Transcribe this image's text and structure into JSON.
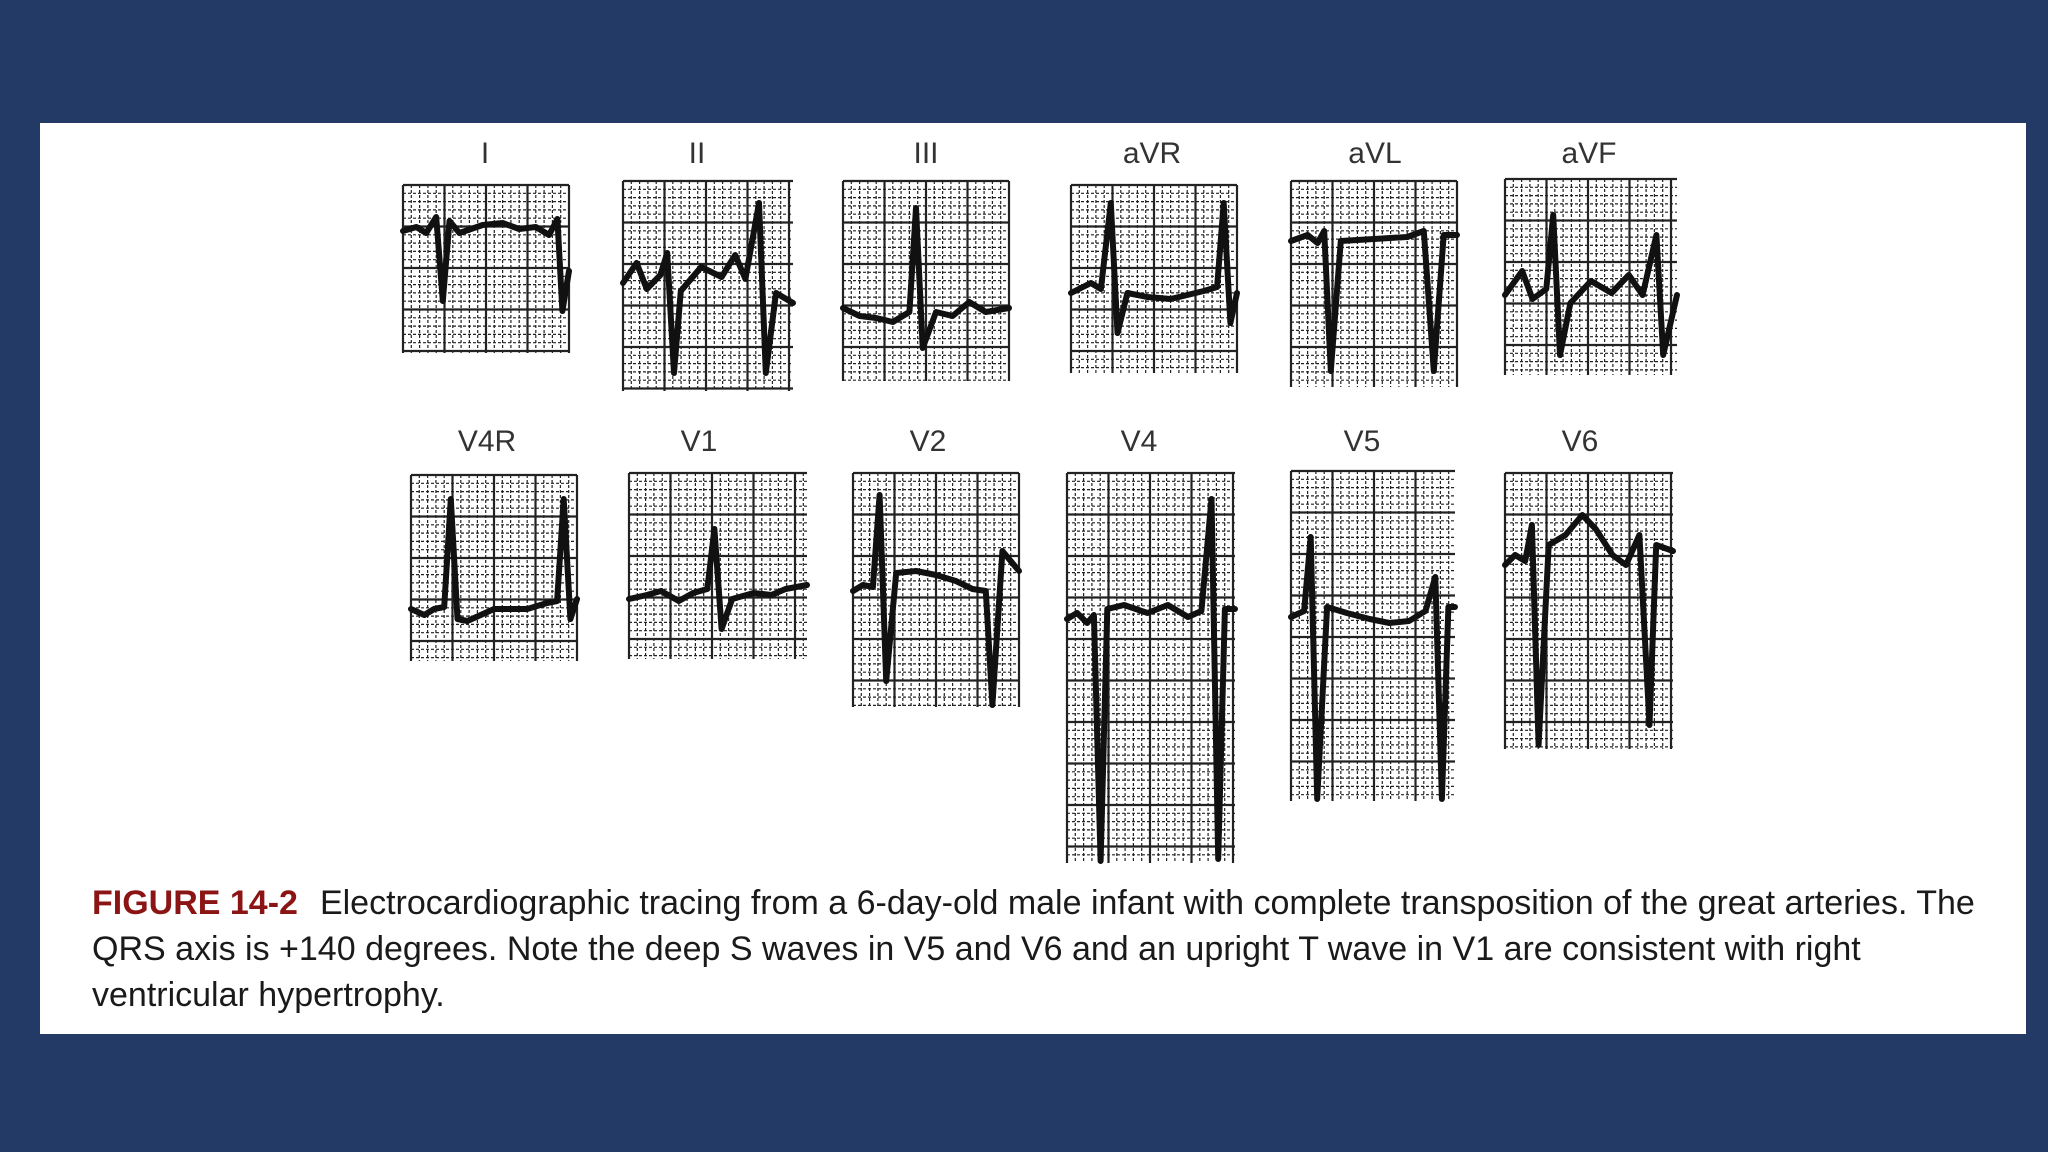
{
  "figure": {
    "leads": [
      {
        "name": "I",
        "wave": "i"
      },
      {
        "name": "II",
        "wave": "ii"
      },
      {
        "name": "III",
        "wave": "iii"
      },
      {
        "name": "aVR",
        "wave": "avr"
      },
      {
        "name": "aVL",
        "wave": "avl"
      },
      {
        "name": "aVF",
        "wave": "avf"
      },
      {
        "name": "V4R",
        "wave": "v4r"
      },
      {
        "name": "V1",
        "wave": "v1"
      },
      {
        "name": "V2",
        "wave": "v2"
      },
      {
        "name": "V4",
        "wave": "v4"
      },
      {
        "name": "V5",
        "wave": "v5"
      },
      {
        "name": "V6",
        "wave": "v6"
      }
    ],
    "caption": {
      "label": "FIGURE 14-2",
      "text": "Electrocardiographic tracing from a 6-day-old male infant with complete transposition of the great arteries. The QRS axis is +140 degrees. Note the deep S waves in V5 and V6 and an upright T wave in V1 are consistent with right ventricular hypertrophy."
    },
    "colors": {
      "background": "#223A65",
      "panel": "#ffffff",
      "caption_label": "#8B1414",
      "trace": "#111111",
      "grid": "#222222"
    }
  }
}
